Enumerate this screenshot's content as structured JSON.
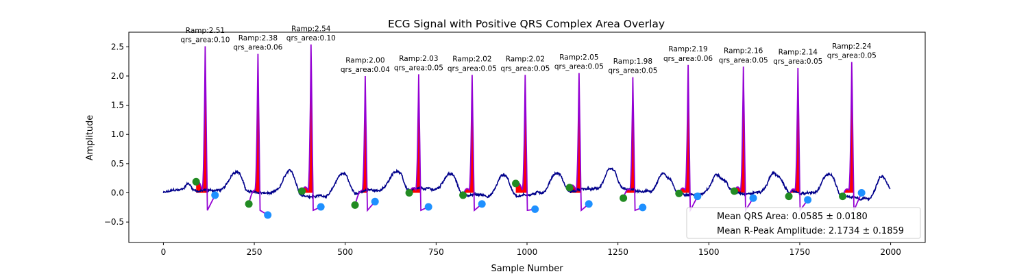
{
  "chart_data": {
    "type": "line",
    "title": "ECG Signal with Positive QRS Complex Area Overlay",
    "xlabel": "Sample Number",
    "ylabel": "Amplitude",
    "xlim": [
      -95,
      2095
    ],
    "ylim": [
      -0.85,
      2.75
    ],
    "x_ticks": [
      0,
      250,
      500,
      750,
      1000,
      1250,
      1500,
      1750,
      2000
    ],
    "y_ticks": [
      -0.5,
      0.0,
      0.5,
      1.0,
      1.5,
      2.0,
      2.5
    ],
    "x_tick_labels": [
      "0",
      "250",
      "500",
      "750",
      "1000",
      "1250",
      "1500",
      "1750",
      "2000"
    ],
    "y_tick_labels": [
      "−0.5",
      "0.0",
      "0.5",
      "1.0",
      "1.5",
      "2.0",
      "2.5"
    ],
    "grid": false,
    "colors": {
      "ecg": "#00008b",
      "qrs_segment": "#9400d3",
      "qrs_fill": "#ff0000",
      "onset_marker": "#228b22",
      "offset_marker": "#1e90ff"
    },
    "beats": [
      {
        "r": 115,
        "ramp": 2.51,
        "area": 0.1,
        "ramp_label": "Ramp:2.51",
        "area_label": "qrs_area:0.10",
        "onset": [
          90,
          0.19
        ],
        "offset": [
          142,
          -0.04
        ]
      },
      {
        "r": 260,
        "ramp": 2.38,
        "area": 0.06,
        "ramp_label": "Ramp:2.38",
        "area_label": "qrs_area:0.06",
        "onset": [
          235,
          -0.19
        ],
        "offset": [
          287,
          -0.38
        ]
      },
      {
        "r": 406,
        "ramp": 2.54,
        "area": 0.1,
        "ramp_label": "Ramp:2.54",
        "area_label": "qrs_area:0.10",
        "onset": [
          381,
          0.03
        ],
        "offset": [
          433,
          -0.24
        ]
      },
      {
        "r": 555,
        "ramp": 2.0,
        "area": 0.04,
        "ramp_label": "Ramp:2.00",
        "area_label": "qrs_area:0.04",
        "onset": [
          527,
          -0.21
        ],
        "offset": [
          582,
          -0.15
        ]
      },
      {
        "r": 702,
        "ramp": 2.03,
        "area": 0.05,
        "ramp_label": "Ramp:2.03",
        "area_label": "qrs_area:0.05",
        "onset": [
          676,
          0.0
        ],
        "offset": [
          729,
          -0.24
        ]
      },
      {
        "r": 849,
        "ramp": 2.02,
        "area": 0.05,
        "ramp_label": "Ramp:2.02",
        "area_label": "qrs_area:0.05",
        "onset": [
          824,
          -0.04
        ],
        "offset": [
          876,
          -0.19
        ]
      },
      {
        "r": 995,
        "ramp": 2.02,
        "area": 0.05,
        "ramp_label": "Ramp:2.02",
        "area_label": "qrs_area:0.05",
        "onset": [
          969,
          0.16
        ],
        "offset": [
          1022,
          -0.28
        ]
      },
      {
        "r": 1143,
        "ramp": 2.05,
        "area": 0.05,
        "ramp_label": "Ramp:2.05",
        "area_label": "qrs_area:0.05",
        "onset": [
          1117,
          0.09
        ],
        "offset": [
          1170,
          -0.19
        ]
      },
      {
        "r": 1291,
        "ramp": 1.98,
        "area": 0.05,
        "ramp_label": "Ramp:1.98",
        "area_label": "qrs_area:0.05",
        "onset": [
          1265,
          -0.09
        ],
        "offset": [
          1318,
          -0.25
        ]
      },
      {
        "r": 1443,
        "ramp": 2.19,
        "area": 0.06,
        "ramp_label": "Ramp:2.19",
        "area_label": "qrs_area:0.06",
        "onset": [
          1418,
          -0.01
        ],
        "offset": [
          1469,
          -0.06
        ]
      },
      {
        "r": 1595,
        "ramp": 2.16,
        "area": 0.05,
        "ramp_label": "Ramp:2.16",
        "area_label": "qrs_area:0.05",
        "onset": [
          1570,
          0.03
        ],
        "offset": [
          1622,
          -0.09
        ]
      },
      {
        "r": 1745,
        "ramp": 2.14,
        "area": 0.05,
        "ramp_label": "Ramp:2.14",
        "area_label": "qrs_area:0.05",
        "onset": [
          1720,
          -0.06
        ],
        "offset": [
          1772,
          -0.12
        ]
      },
      {
        "r": 1893,
        "ramp": 2.24,
        "area": 0.05,
        "ramp_label": "Ramp:2.24",
        "area_label": "qrs_area:0.05",
        "onset": [
          1868,
          -0.06
        ],
        "offset": [
          1920,
          0.0
        ]
      }
    ],
    "legend": {
      "placement": "lower-right",
      "entries": [
        "Mean QRS Area: 0.0585 ± 0.0180",
        "Mean R-Peak Amplitude: 2.1734 ± 0.1859"
      ]
    }
  }
}
